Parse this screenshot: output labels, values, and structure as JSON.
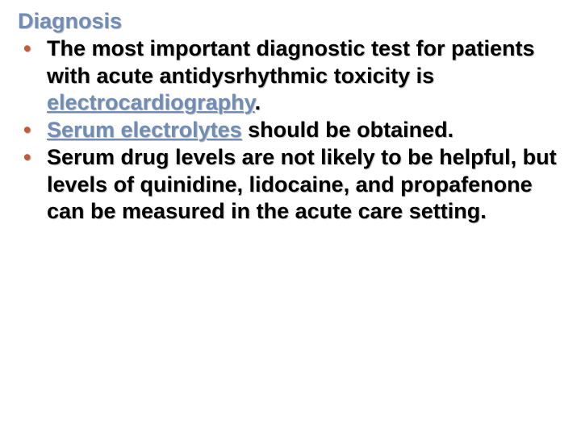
{
  "colors": {
    "heading_color": "#6f8db7",
    "bullet_marker_color": "#c35a3a",
    "body_text_color": "#000000",
    "keyword_color": "#6f8db7",
    "background": "#ffffff"
  },
  "typography": {
    "font_family": "Verdana, Tahoma, Arial, sans-serif",
    "heading_fontsize_pt": 20,
    "body_fontsize_pt": 20,
    "font_weight": "bold",
    "line_height": 1.25
  },
  "heading": "Diagnosis",
  "bullets": [
    {
      "pre": "The most important diagnostic test for patients with acute antidysrhythmic toxicity is ",
      "keyword": "electrocardiography",
      "post": "."
    },
    {
      "pre": "",
      "keyword": "Serum electrolytes",
      "post": " should be obtained."
    },
    {
      "pre": "Serum drug levels are not likely to be helpful, but levels of quinidine, lidocaine, and propafenone can be measured in the acute care setting.",
      "keyword": "",
      "post": ""
    }
  ]
}
